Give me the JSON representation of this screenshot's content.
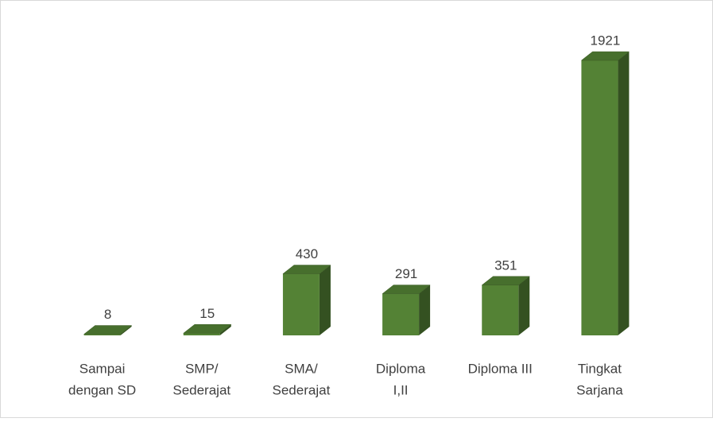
{
  "chart_data": {
    "type": "bar3d",
    "categories": [
      [
        "Sampai",
        "dengan SD"
      ],
      [
        "SMP/",
        "Sederajat"
      ],
      [
        "SMA/",
        "Sederajat"
      ],
      [
        "Diploma",
        "I,II"
      ],
      [
        "Diploma III"
      ],
      [
        "Tingkat",
        "Sarjana"
      ]
    ],
    "values": [
      8,
      15,
      430,
      291,
      351,
      1921
    ],
    "color": "#548235"
  }
}
